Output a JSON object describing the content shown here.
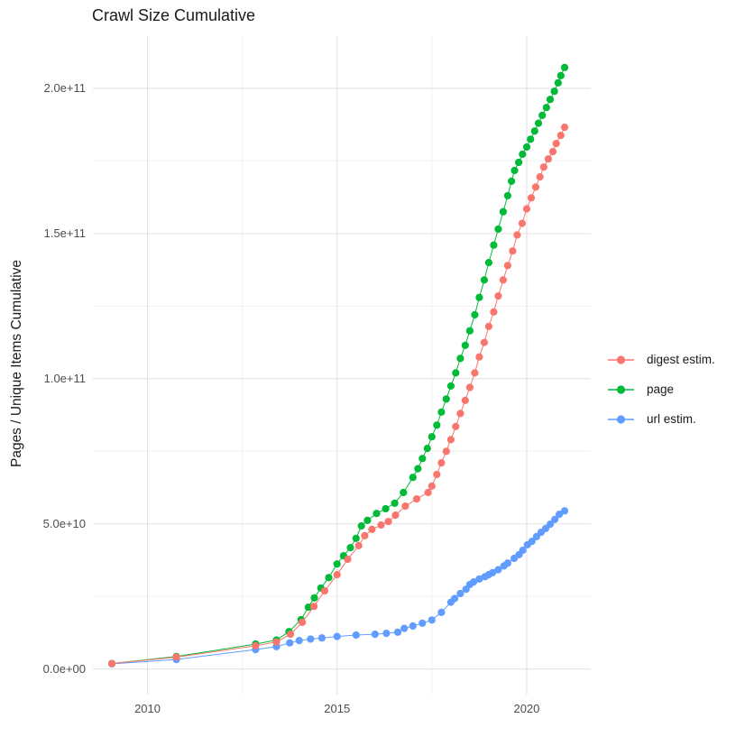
{
  "chart": {
    "title": "Crawl Size Cumulative",
    "colors": {
      "digest": "#F8766D",
      "page": "#00BA38",
      "url": "#619CFF",
      "grid_major": "#E2E2E2",
      "grid_minor": "#F0F0F0",
      "tick_text": "#4d4d4d",
      "title_text": "#1a1a1a"
    }
  },
  "chart_data": {
    "type": "scatter",
    "title": "Crawl Size Cumulative",
    "xlabel": "",
    "ylabel": "Pages / Unique Items Cumulative",
    "xlim": [
      2008.56,
      2021.69
    ],
    "ylim": [
      -8800000000.0,
      218000000000.0
    ],
    "grid": true,
    "legend_position": "right",
    "x_major_ticks": [
      {
        "value": 2010,
        "label": "2010"
      },
      {
        "value": 2015,
        "label": "2015"
      },
      {
        "value": 2020,
        "label": "2020"
      }
    ],
    "x_minor_ticks": [
      2012.5,
      2017.5
    ],
    "y_major_ticks": [
      {
        "value": 0,
        "label": "0.0e+00"
      },
      {
        "value": 50000000000.0,
        "label": "5.0e+10"
      },
      {
        "value": 100000000000.0,
        "label": "1.0e+11"
      },
      {
        "value": 150000000000.0,
        "label": "1.5e+11"
      },
      {
        "value": 200000000000.0,
        "label": "2.0e+11"
      }
    ],
    "y_minor_ticks": [
      25000000000.0,
      75000000000.0,
      125000000000.0,
      175000000000.0
    ],
    "draw_order": [
      "page",
      "url estim.",
      "digest estim."
    ],
    "series": [
      {
        "name": "digest estim.",
        "color": "#F8766D",
        "points": [
          [
            2009.06,
            1900000000.0
          ],
          [
            2010.76,
            4100000000.0
          ],
          [
            2012.85,
            8000000000.0
          ],
          [
            2013.4,
            9300000000.0
          ],
          [
            2013.77,
            12000000000.0
          ],
          [
            2014.08,
            16100000000.0
          ],
          [
            2014.39,
            21600000000.0
          ],
          [
            2014.67,
            26900000000.0
          ],
          [
            2015.0,
            32500000000.0
          ],
          [
            2015.28,
            37800000000.0
          ],
          [
            2015.57,
            42500000000.0
          ],
          [
            2015.73,
            45900000000.0
          ],
          [
            2015.92,
            48100000000.0
          ],
          [
            2016.16,
            49600000000.0
          ],
          [
            2016.35,
            50800000000.0
          ],
          [
            2016.54,
            53000000000.0
          ],
          [
            2016.8,
            56100000000.0
          ],
          [
            2017.1,
            58600000000.0
          ],
          [
            2017.4,
            60800000000.0
          ],
          [
            2017.5,
            63000000000.0
          ],
          [
            2017.63,
            67000000000.0
          ],
          [
            2017.75,
            71000000000.0
          ],
          [
            2017.88,
            75000000000.0
          ],
          [
            2018.0,
            79000000000.0
          ],
          [
            2018.13,
            83500000000.0
          ],
          [
            2018.25,
            88000000000.0
          ],
          [
            2018.38,
            92500000000.0
          ],
          [
            2018.5,
            97000000000.0
          ],
          [
            2018.63,
            102000000000.0
          ],
          [
            2018.75,
            107500000000.0
          ],
          [
            2018.88,
            112500000000.0
          ],
          [
            2019.0,
            118000000000.0
          ],
          [
            2019.13,
            123000000000.0
          ],
          [
            2019.25,
            128500000000.0
          ],
          [
            2019.38,
            134000000000.0
          ],
          [
            2019.5,
            139000000000.0
          ],
          [
            2019.63,
            144000000000.0
          ],
          [
            2019.75,
            149500000000.0
          ],
          [
            2019.88,
            153500000000.0
          ],
          [
            2020.0,
            158500000000.0
          ],
          [
            2020.12,
            162300000000.0
          ],
          [
            2020.24,
            166000000000.0
          ],
          [
            2020.35,
            169500000000.0
          ],
          [
            2020.45,
            172900000000.0
          ],
          [
            2020.57,
            175700000000.0
          ],
          [
            2020.69,
            178200000000.0
          ],
          [
            2020.78,
            181000000000.0
          ],
          [
            2020.9,
            183800000000.0
          ],
          [
            2021.0,
            186600000000.0
          ]
        ]
      },
      {
        "name": "page",
        "color": "#00BA38",
        "points": [
          [
            2009.06,
            1900000000.0
          ],
          [
            2010.76,
            4300000000.0
          ],
          [
            2012.85,
            8600000000.0
          ],
          [
            2013.4,
            10000000000.0
          ],
          [
            2013.73,
            12900000000.0
          ],
          [
            2014.05,
            17000000000.0
          ],
          [
            2014.24,
            21300000000.0
          ],
          [
            2014.4,
            24500000000.0
          ],
          [
            2014.57,
            27900000000.0
          ],
          [
            2014.78,
            31500000000.0
          ],
          [
            2015.0,
            36200000000.0
          ],
          [
            2015.17,
            39000000000.0
          ],
          [
            2015.35,
            41800000000.0
          ],
          [
            2015.5,
            45000000000.0
          ],
          [
            2015.64,
            49300000000.0
          ],
          [
            2015.8,
            51200000000.0
          ],
          [
            2016.04,
            53600000000.0
          ],
          [
            2016.28,
            55200000000.0
          ],
          [
            2016.52,
            57100000000.0
          ],
          [
            2016.75,
            60800000000.0
          ],
          [
            2017.0,
            66000000000.0
          ],
          [
            2017.13,
            69000000000.0
          ],
          [
            2017.25,
            72500000000.0
          ],
          [
            2017.38,
            76000000000.0
          ],
          [
            2017.5,
            80000000000.0
          ],
          [
            2017.63,
            84000000000.0
          ],
          [
            2017.75,
            88500000000.0
          ],
          [
            2017.88,
            93000000000.0
          ],
          [
            2018.0,
            97500000000.0
          ],
          [
            2018.13,
            102000000000.0
          ],
          [
            2018.25,
            107000000000.0
          ],
          [
            2018.38,
            111500000000.0
          ],
          [
            2018.5,
            116500000000.0
          ],
          [
            2018.63,
            122000000000.0
          ],
          [
            2018.75,
            128000000000.0
          ],
          [
            2018.88,
            134000000000.0
          ],
          [
            2019.0,
            140000000000.0
          ],
          [
            2019.13,
            146000000000.0
          ],
          [
            2019.25,
            151500000000.0
          ],
          [
            2019.38,
            157500000000.0
          ],
          [
            2019.5,
            163000000000.0
          ],
          [
            2019.6,
            168000000000.0
          ],
          [
            2019.68,
            171700000000.0
          ],
          [
            2019.79,
            174500000000.0
          ],
          [
            2019.89,
            177300000000.0
          ],
          [
            2020.0,
            179800000000.0
          ],
          [
            2020.1,
            182500000000.0
          ],
          [
            2020.21,
            185300000000.0
          ],
          [
            2020.31,
            188000000000.0
          ],
          [
            2020.41,
            190700000000.0
          ],
          [
            2020.52,
            193400000000.0
          ],
          [
            2020.62,
            196200000000.0
          ],
          [
            2020.73,
            199000000000.0
          ],
          [
            2020.83,
            201900000000.0
          ],
          [
            2020.9,
            204400000000.0
          ],
          [
            2021.0,
            207200000000.0
          ]
        ]
      },
      {
        "name": "url estim.",
        "color": "#619CFF",
        "points": [
          [
            2009.06,
            1800000000.0
          ],
          [
            2010.76,
            3300000000.0
          ],
          [
            2012.85,
            6700000000.0
          ],
          [
            2013.4,
            7700000000.0
          ],
          [
            2013.75,
            9000000000.0
          ],
          [
            2014.0,
            9800000000.0
          ],
          [
            2014.3,
            10300000000.0
          ],
          [
            2014.6,
            10700000000.0
          ],
          [
            2015.0,
            11200000000.0
          ],
          [
            2015.5,
            11700000000.0
          ],
          [
            2016.0,
            12000000000.0
          ],
          [
            2016.3,
            12300000000.0
          ],
          [
            2016.6,
            12700000000.0
          ],
          [
            2016.77,
            14000000000.0
          ],
          [
            2017.0,
            14800000000.0
          ],
          [
            2017.25,
            15800000000.0
          ],
          [
            2017.5,
            16900000000.0
          ],
          [
            2017.75,
            19500000000.0
          ],
          [
            2018.0,
            23000000000.0
          ],
          [
            2018.1,
            24300000000.0
          ],
          [
            2018.25,
            26000000000.0
          ],
          [
            2018.4,
            27500000000.0
          ],
          [
            2018.5,
            29100000000.0
          ],
          [
            2018.6,
            30000000000.0
          ],
          [
            2018.75,
            31000000000.0
          ],
          [
            2018.9,
            31800000000.0
          ],
          [
            2019.0,
            32500000000.0
          ],
          [
            2019.1,
            33200000000.0
          ],
          [
            2019.25,
            34200000000.0
          ],
          [
            2019.4,
            35500000000.0
          ],
          [
            2019.5,
            36500000000.0
          ],
          [
            2019.67,
            38100000000.0
          ],
          [
            2019.8,
            39400000000.0
          ],
          [
            2019.9,
            40900000000.0
          ],
          [
            2020.02,
            42800000000.0
          ],
          [
            2020.14,
            44000000000.0
          ],
          [
            2020.26,
            45600000000.0
          ],
          [
            2020.38,
            47100000000.0
          ],
          [
            2020.5,
            48400000000.0
          ],
          [
            2020.62,
            49900000000.0
          ],
          [
            2020.74,
            51500000000.0
          ],
          [
            2020.86,
            53300000000.0
          ],
          [
            2021.0,
            54500000000.0
          ]
        ]
      }
    ]
  }
}
